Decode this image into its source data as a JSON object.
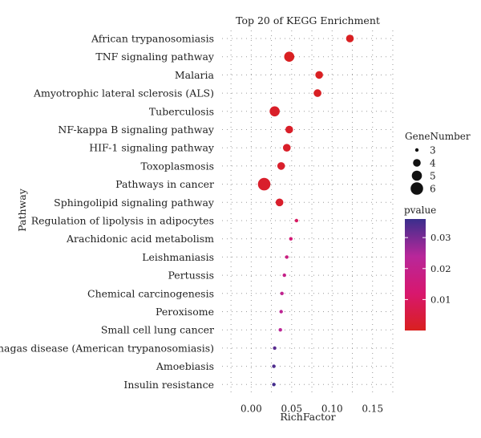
{
  "chart_data": {
    "type": "scatter",
    "title": "Top 20 of KEGG Enrichment",
    "xlabel": "RichFactor",
    "ylabel": "Pathway",
    "xlim": [
      -0.04,
      0.18
    ],
    "xticks": [
      0.0,
      0.05,
      0.1,
      0.15
    ],
    "xtick_labels": [
      "0.00",
      "0.05",
      "0.10",
      "0.15"
    ],
    "grid": "dotted",
    "size_legend": {
      "title": "GeneNumber",
      "values": [
        3,
        4,
        5,
        6
      ],
      "labels": [
        "3",
        "4",
        "5",
        "6"
      ]
    },
    "color_legend": {
      "title": "pvalue",
      "range": [
        0,
        0.036
      ],
      "ticks": [
        0.01,
        0.02,
        0.03
      ],
      "tick_labels": [
        "0.01",
        "0.02",
        "0.03"
      ],
      "colors": [
        "#d9201f",
        "#d8176e",
        "#b8279a",
        "#3a2e8c"
      ]
    },
    "points": [
      {
        "pathway": "African trypanosomiasis",
        "richFactor": 0.122,
        "geneNumber": 4,
        "pvalue": 0.0005
      },
      {
        "pathway": "TNF signaling pathway",
        "richFactor": 0.047,
        "geneNumber": 5,
        "pvalue": 0.0005
      },
      {
        "pathway": "Malaria",
        "richFactor": 0.084,
        "geneNumber": 4,
        "pvalue": 0.0005
      },
      {
        "pathway": "Amyotrophic lateral sclerosis (ALS)",
        "richFactor": 0.082,
        "geneNumber": 4,
        "pvalue": 0.0008
      },
      {
        "pathway": "Tuberculosis",
        "richFactor": 0.029,
        "geneNumber": 5,
        "pvalue": 0.0015
      },
      {
        "pathway": "NF-kappa B signaling pathway",
        "richFactor": 0.047,
        "geneNumber": 4,
        "pvalue": 0.0015
      },
      {
        "pathway": "HIF-1 signaling pathway",
        "richFactor": 0.044,
        "geneNumber": 4,
        "pvalue": 0.0015
      },
      {
        "pathway": "Toxoplasmosis",
        "richFactor": 0.037,
        "geneNumber": 4,
        "pvalue": 0.002
      },
      {
        "pathway": "Pathways in cancer",
        "richFactor": 0.016,
        "geneNumber": 6,
        "pvalue": 0.002
      },
      {
        "pathway": "Sphingolipid signaling pathway",
        "richFactor": 0.035,
        "geneNumber": 4,
        "pvalue": 0.002
      },
      {
        "pathway": "Regulation of lipolysis in adipocytes",
        "richFactor": 0.056,
        "geneNumber": 3,
        "pvalue": 0.01
      },
      {
        "pathway": "Arachidonic acid metabolism",
        "richFactor": 0.049,
        "geneNumber": 3,
        "pvalue": 0.014
      },
      {
        "pathway": "Leishmaniasis",
        "richFactor": 0.044,
        "geneNumber": 3,
        "pvalue": 0.017
      },
      {
        "pathway": "Pertussis",
        "richFactor": 0.041,
        "geneNumber": 3,
        "pvalue": 0.019
      },
      {
        "pathway": "Chemical carcinogenesis",
        "richFactor": 0.038,
        "geneNumber": 3,
        "pvalue": 0.021
      },
      {
        "pathway": "Peroxisome",
        "richFactor": 0.037,
        "geneNumber": 3,
        "pvalue": 0.022
      },
      {
        "pathway": "Small cell lung cancer",
        "richFactor": 0.036,
        "geneNumber": 3,
        "pvalue": 0.023
      },
      {
        "pathway": "Chagas disease (American trypanosomiasis)",
        "richFactor": 0.029,
        "geneNumber": 3,
        "pvalue": 0.033
      },
      {
        "pathway": "Amoebiasis",
        "richFactor": 0.028,
        "geneNumber": 3,
        "pvalue": 0.034
      },
      {
        "pathway": "Insulin resistance",
        "richFactor": 0.028,
        "geneNumber": 3,
        "pvalue": 0.035
      }
    ]
  }
}
